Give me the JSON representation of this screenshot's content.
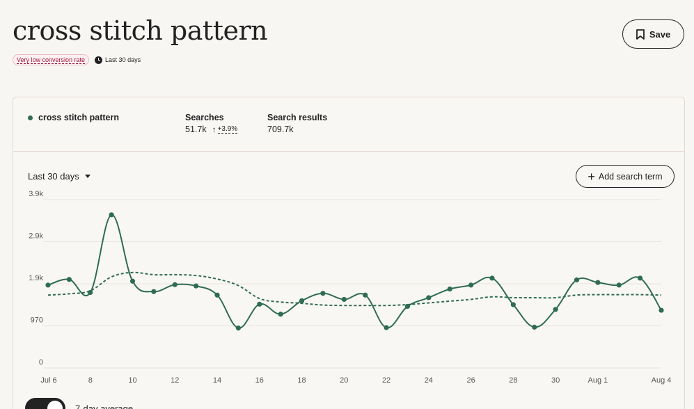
{
  "title": "cross stitch pattern",
  "badge": "Very low conversion rate",
  "period": "Last 30 days",
  "save_label": "Save",
  "term": {
    "name": "cross stitch pattern",
    "color": "#2f6b55"
  },
  "stats": {
    "searches_label": "Searches",
    "searches_value": "51.7k",
    "searches_trend": "+3.9%",
    "results_label": "Search results",
    "results_value": "709.7k"
  },
  "range_select": "Last 30 days",
  "add_term_label": "Add search term",
  "legend_label": "7-day average",
  "chart_data": {
    "type": "line",
    "y_ticks": [
      "0",
      "970",
      "1.9k",
      "2.9k",
      "3.9k"
    ],
    "y_tick_values": [
      0,
      970,
      1940,
      2910,
      3880
    ],
    "ylim": [
      0,
      3880
    ],
    "x_ticks": [
      "Jul 6",
      "8",
      "10",
      "12",
      "14",
      "16",
      "18",
      "20",
      "22",
      "24",
      "26",
      "28",
      "30",
      "Aug 1",
      "Aug 4"
    ],
    "x_tick_days": [
      0,
      2,
      4,
      6,
      8,
      10,
      12,
      14,
      16,
      18,
      20,
      22,
      24,
      26,
      29
    ],
    "grid": true,
    "series": [
      {
        "name": "cross stitch pattern",
        "style": "solid",
        "days": [
          0,
          1,
          2,
          3,
          4,
          5,
          6,
          7,
          8,
          9,
          10,
          11,
          12,
          13,
          14,
          15,
          16,
          17,
          18,
          19,
          20,
          21,
          22,
          23,
          24,
          25,
          26,
          27,
          28,
          29
        ],
        "values": [
          1910,
          2040,
          1740,
          3530,
          2000,
          1760,
          1920,
          1890,
          1680,
          920,
          1470,
          1240,
          1550,
          1720,
          1580,
          1680,
          930,
          1420,
          1620,
          1820,
          1910,
          2070,
          1460,
          940,
          1350,
          2030,
          1970,
          1910,
          2070,
          1330
        ]
      },
      {
        "name": "7-day average",
        "style": "dashed",
        "days": [
          0,
          1,
          2,
          3,
          4,
          5,
          6,
          7,
          8,
          9,
          10,
          11,
          12,
          13,
          14,
          15,
          16,
          17,
          18,
          19,
          20,
          21,
          22,
          23,
          24,
          25,
          26,
          27,
          28,
          29
        ],
        "values": [
          1680,
          1710,
          1780,
          2100,
          2200,
          2150,
          2150,
          2130,
          2050,
          1900,
          1600,
          1520,
          1490,
          1450,
          1440,
          1440,
          1440,
          1460,
          1500,
          1540,
          1580,
          1640,
          1620,
          1620,
          1620,
          1680,
          1690,
          1690,
          1690,
          1680
        ]
      }
    ]
  }
}
